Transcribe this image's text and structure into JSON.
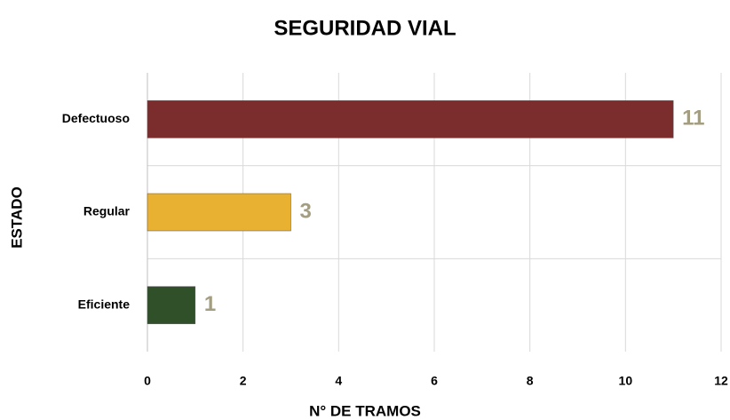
{
  "chart_data": {
    "type": "hbar",
    "title": "SEGURIDAD VIAL",
    "xlabel": "N° DE TRAMOS",
    "ylabel": "ESTADO",
    "categories": [
      "Defectuoso",
      "Regular",
      "Eficiente"
    ],
    "values": [
      11,
      3,
      1
    ],
    "colors": [
      "#7b2c2d",
      "#e9b131",
      "#30502a"
    ],
    "xlim": [
      0,
      12
    ],
    "xticks": [
      0,
      2,
      4,
      6,
      8,
      10,
      12
    ],
    "grid": true
  }
}
